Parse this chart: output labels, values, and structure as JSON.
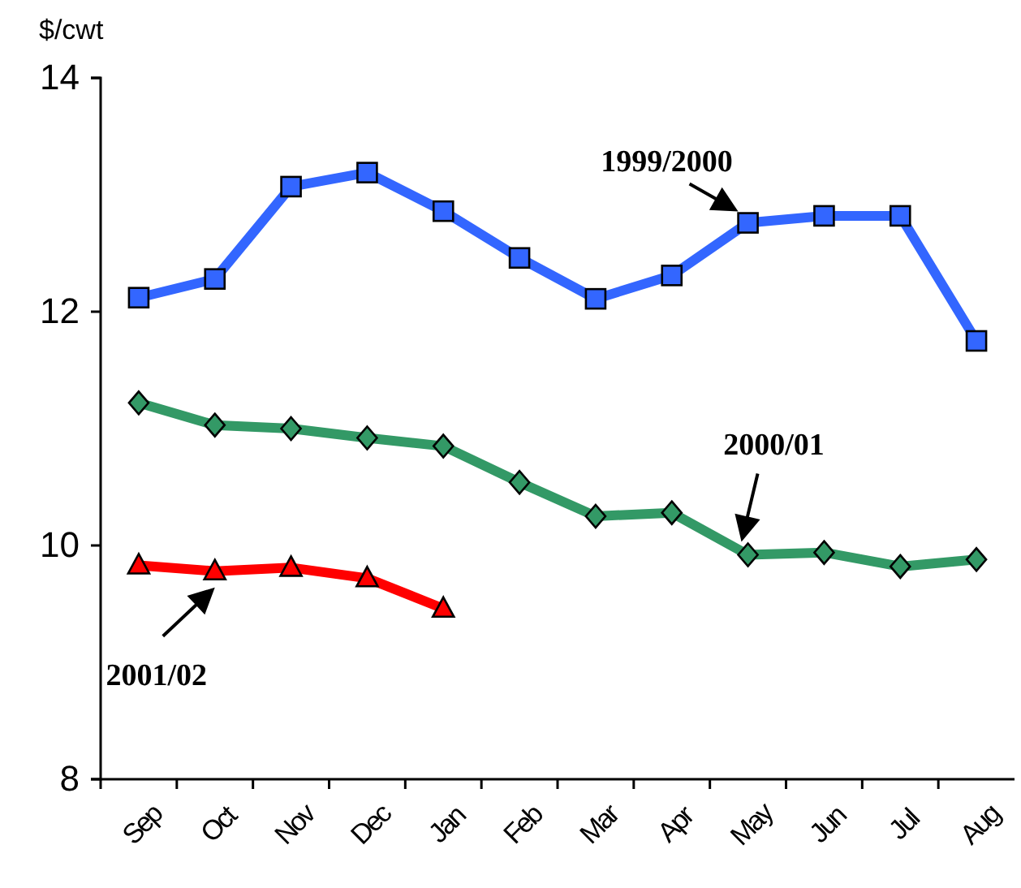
{
  "chart_data": {
    "type": "line",
    "ylabel": "$/cwt",
    "categories": [
      "Sep",
      "Oct",
      "Nov",
      "Dec",
      "Jan",
      "Feb",
      "Mar",
      "Apr",
      "May",
      "Jun",
      "Jul",
      "Aug"
    ],
    "ylim": [
      8,
      14
    ],
    "yticks": [
      8,
      10,
      12,
      14
    ],
    "grid": false,
    "annotations": [
      {
        "text": "1999/2000",
        "x": "May",
        "y": 12.76
      },
      {
        "text": "2000/01",
        "x": "May",
        "y": 9.92
      },
      {
        "text": "2001/02",
        "x": "Oct",
        "y": 9.78
      }
    ],
    "line_style": "solid",
    "series": [
      {
        "color": "#3366ff",
        "marker": "square",
        "values": [
          12.12,
          12.28,
          13.07,
          13.19,
          12.86,
          12.46,
          12.11,
          12.31,
          12.76,
          12.82,
          12.82,
          11.75
        ]
      },
      {
        "color": "#339966",
        "marker": "diamond",
        "values": [
          11.22,
          11.03,
          11.0,
          10.92,
          10.85,
          10.54,
          10.25,
          10.28,
          9.92,
          9.94,
          9.82,
          9.88
        ]
      },
      {
        "color": "#ff0000",
        "marker": "triangle",
        "values": [
          9.83,
          9.78,
          9.81,
          9.72,
          9.46,
          null,
          null,
          null,
          null,
          null,
          null,
          null
        ]
      }
    ]
  }
}
